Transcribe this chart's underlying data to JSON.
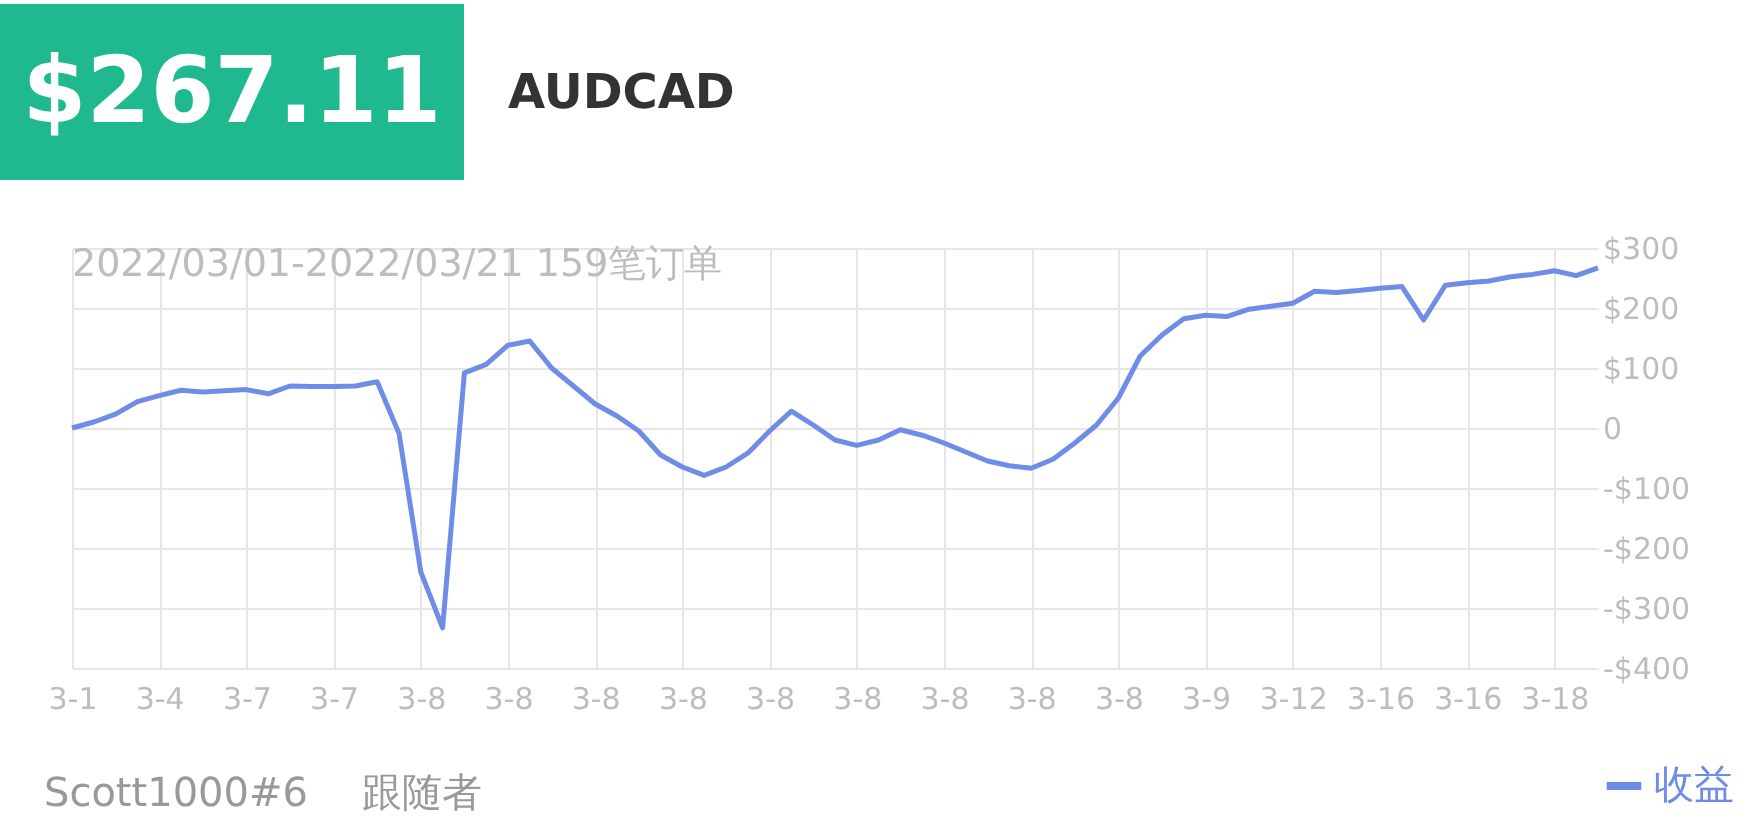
{
  "chart_data": {
    "type": "line",
    "title": "AUDCAD",
    "subtitle": "2022/03/01-2022/03/21 159笔订单",
    "annotations": [
      "$267.11",
      "Scott1000#6",
      "跟随者"
    ],
    "categories": [
      "3-1",
      null,
      null,
      null,
      "3-4",
      null,
      null,
      null,
      "3-7",
      null,
      null,
      null,
      "3-7",
      null,
      null,
      null,
      "3-8",
      null,
      null,
      null,
      "3-8",
      null,
      null,
      null,
      "3-8",
      null,
      null,
      null,
      "3-8",
      null,
      null,
      null,
      "3-8",
      null,
      null,
      null,
      "3-8",
      null,
      null,
      null,
      "3-8",
      null,
      null,
      null,
      "3-8",
      null,
      null,
      null,
      "3-8",
      null,
      null,
      null,
      "3-9",
      null,
      null,
      null,
      "3-12",
      null,
      null,
      null,
      "3-16",
      null,
      null,
      null,
      "3-16",
      null,
      null,
      null,
      "3-18",
      null,
      null
    ],
    "series": [
      {
        "name": "收益",
        "color": "#6f8de6",
        "values": [
          0,
          10,
          23,
          44,
          54,
          63,
          60,
          62,
          64,
          57,
          70,
          69,
          69,
          70,
          77,
          -9,
          -240,
          -333,
          92,
          106,
          138,
          145,
          100,
          70,
          40,
          20,
          -5,
          -45,
          -65,
          -79,
          -65,
          -42,
          -5,
          28,
          5,
          -20,
          -29,
          -20,
          -3,
          -12,
          -25,
          -40,
          -55,
          -63,
          -67,
          -52,
          -25,
          5,
          50,
          120,
          155,
          182,
          188,
          186,
          198,
          203,
          208,
          228,
          226,
          229,
          233,
          236,
          180,
          238,
          242,
          245,
          252,
          256,
          262,
          254,
          267
        ]
      }
    ],
    "ylim": [
      -400,
      300
    ],
    "yticks": [
      {
        "value": 300,
        "label": "$300"
      },
      {
        "value": 200,
        "label": "$200"
      },
      {
        "value": 100,
        "label": "$100"
      },
      0,
      {
        "value": -100,
        "label": "-$100"
      },
      {
        "value": -200,
        "label": "-$200"
      },
      {
        "value": -300,
        "label": "-$300"
      },
      {
        "value": -400,
        "label": "-$400"
      }
    ],
    "grid": true,
    "legend": "bottom right",
    "marker": "none",
    "line_style": "solid"
  }
}
